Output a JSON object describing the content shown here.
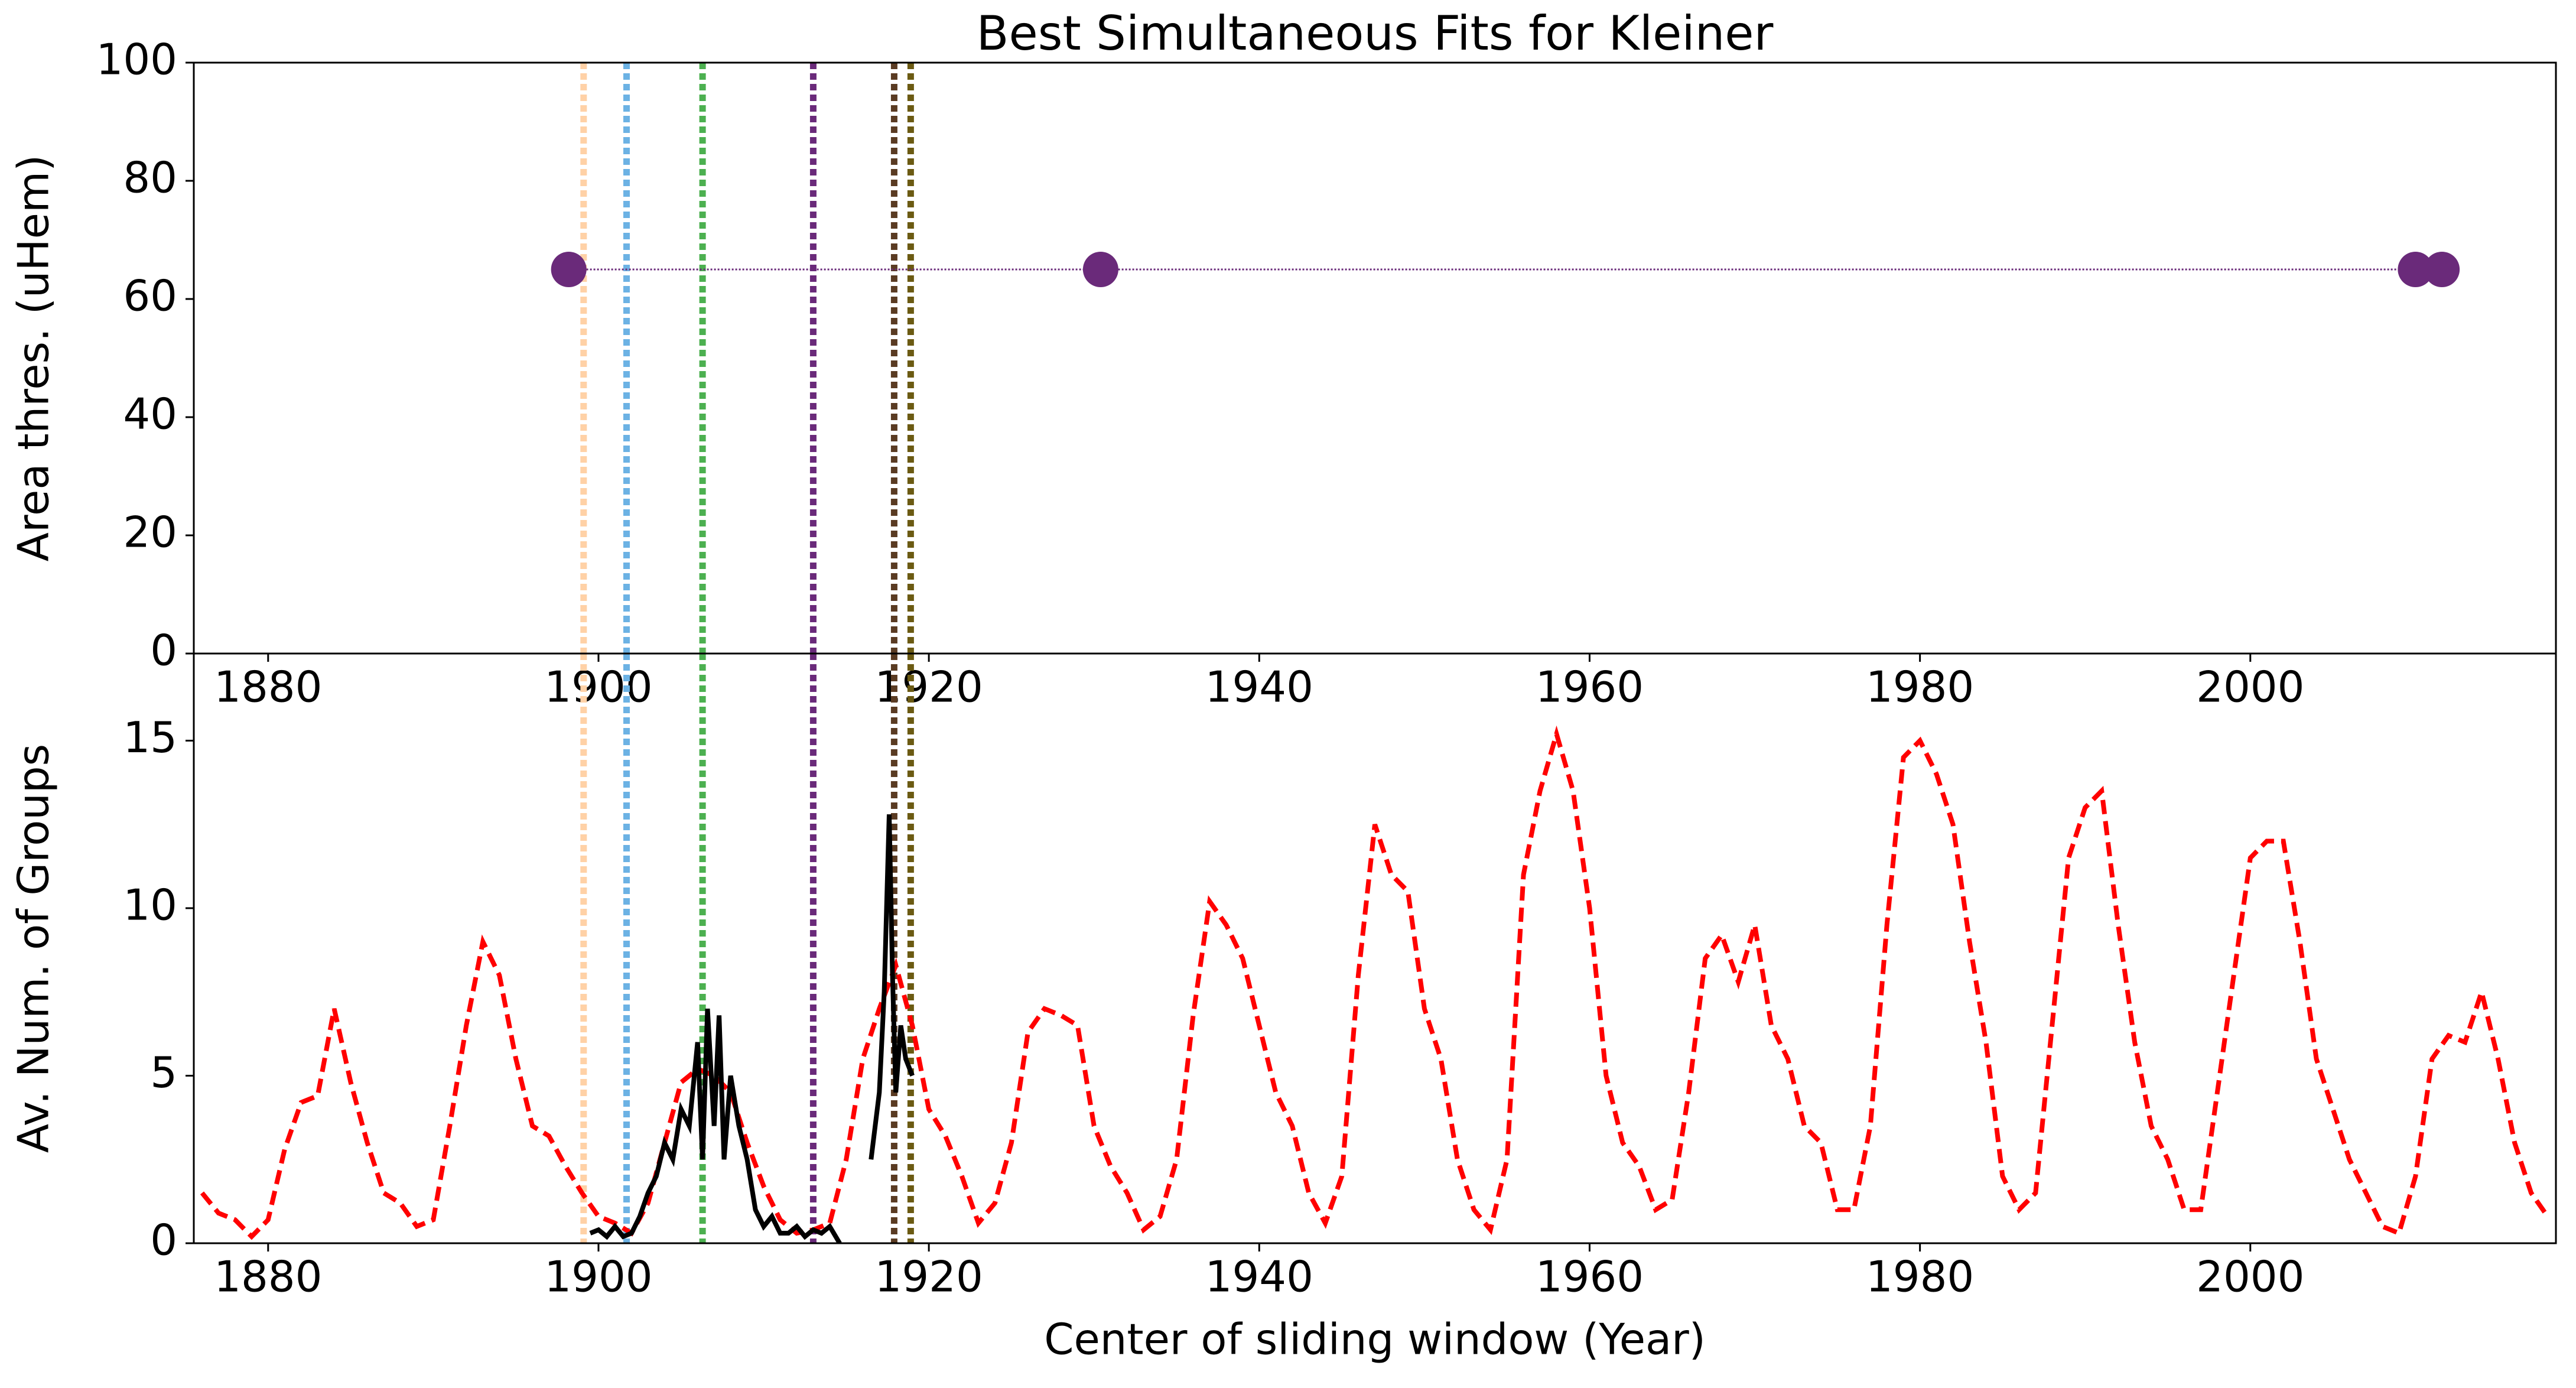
{
  "chart_data": [
    {
      "type": "line",
      "title": "Best Simultaneous Fits for Kleiner",
      "y_label": "Area thres. (uHem)",
      "xlim": [
        1875.5,
        2018.5
      ],
      "xticks": [
        1880,
        1900,
        1920,
        1940,
        1960,
        1980,
        2000
      ],
      "ylim": [
        0,
        100
      ],
      "yticks": [
        0,
        20,
        40,
        60,
        80,
        100
      ],
      "vlines": [
        {
          "x": 1899.1,
          "color": "#ffd1a6"
        },
        {
          "x": 1901.7,
          "color": "#6cb2e4"
        },
        {
          "x": 1906.3,
          "color": "#4cb050"
        },
        {
          "x": 1913.0,
          "color": "#6a2a7a"
        },
        {
          "x": 1917.9,
          "color": "#5a3b22"
        },
        {
          "x": 1918.9,
          "color": "#6b5a12"
        }
      ],
      "series": [
        {
          "color": "#6a2a7a",
          "linestyle": "dotted",
          "markers": true,
          "x": [
            1898.2,
            1930.4,
            2010.0,
            2011.6
          ],
          "values": [
            65,
            65,
            65,
            65
          ]
        }
      ]
    },
    {
      "type": "line",
      "x_label": "Center of sliding window (Year)",
      "y_label": "Av. Num. of Groups",
      "xlim": [
        1875.5,
        2018.5
      ],
      "xticks": [
        1880,
        1900,
        1920,
        1940,
        1960,
        1980,
        2000
      ],
      "ylim": [
        0,
        17.6
      ],
      "yticks": [
        0,
        5,
        10,
        15
      ],
      "vlines": [
        {
          "x": 1899.1,
          "color": "#ffd1a6"
        },
        {
          "x": 1901.7,
          "color": "#6cb2e4"
        },
        {
          "x": 1906.3,
          "color": "#4cb050"
        },
        {
          "x": 1913.0,
          "color": "#6a2a7a"
        },
        {
          "x": 1917.9,
          "color": "#5a3b22"
        },
        {
          "x": 1918.9,
          "color": "#6b5a12"
        }
      ],
      "series": [
        {
          "color": "#ff0000",
          "linestyle": "dashed",
          "markers": false,
          "x": [
            1876,
            1877,
            1878,
            1879,
            1880,
            1881,
            1882,
            1883,
            1884,
            1885,
            1886,
            1887,
            1888,
            1889,
            1890,
            1891,
            1892,
            1893,
            1894,
            1895,
            1896,
            1897,
            1898,
            1899,
            1900,
            1901,
            1902,
            1903,
            1904,
            1905,
            1906,
            1907,
            1908,
            1909,
            1910,
            1911,
            1912,
            1913,
            1914,
            1915,
            1916,
            1917,
            1918,
            1919,
            1920,
            1921,
            1922,
            1923,
            1924,
            1925,
            1926,
            1927,
            1928,
            1929,
            1930,
            1931,
            1932,
            1933,
            1934,
            1935,
            1936,
            1937,
            1938,
            1939,
            1940,
            1941,
            1942,
            1943,
            1944,
            1945,
            1946,
            1947,
            1948,
            1949,
            1950,
            1951,
            1952,
            1953,
            1954,
            1955,
            1956,
            1957,
            1958,
            1959,
            1960,
            1961,
            1962,
            1963,
            1964,
            1965,
            1966,
            1967,
            1968,
            1969,
            1970,
            1971,
            1972,
            1973,
            1974,
            1975,
            1976,
            1977,
            1978,
            1979,
            1980,
            1981,
            1982,
            1983,
            1984,
            1985,
            1986,
            1987,
            1988,
            1989,
            1990,
            1991,
            1992,
            1993,
            1994,
            1995,
            1996,
            1997,
            1998,
            1999,
            2000,
            2001,
            2002,
            2003,
            2004,
            2005,
            2006,
            2007,
            2008,
            2009,
            2010,
            2011,
            2012,
            2013,
            2014,
            2015,
            2016,
            2017,
            2018
          ],
          "values": [
            1.5,
            0.9,
            0.7,
            0.2,
            0.7,
            2.8,
            4.2,
            4.4,
            7.0,
            4.8,
            3.0,
            1.5,
            1.2,
            0.5,
            0.7,
            3.5,
            6.5,
            9.0,
            8.0,
            5.5,
            3.5,
            3.2,
            2.3,
            1.5,
            0.8,
            0.6,
            0.3,
            1.2,
            3.0,
            4.8,
            5.2,
            5.0,
            4.5,
            3.0,
            1.7,
            0.7,
            0.3,
            0.4,
            0.6,
            2.5,
            5.5,
            7.0,
            8.3,
            6.5,
            4.0,
            3.2,
            2.0,
            0.6,
            1.2,
            3.0,
            6.3,
            7.0,
            6.8,
            6.5,
            3.5,
            2.3,
            1.5,
            0.4,
            0.8,
            2.5,
            6.8,
            10.2,
            9.5,
            8.5,
            6.5,
            4.5,
            3.5,
            1.5,
            0.6,
            2.0,
            8.0,
            12.5,
            11.0,
            10.5,
            7.0,
            5.5,
            2.5,
            1.0,
            0.4,
            2.5,
            11.0,
            13.5,
            15.2,
            13.5,
            10.0,
            5.0,
            3.0,
            2.3,
            1.0,
            1.3,
            4.5,
            8.5,
            9.2,
            7.8,
            9.5,
            6.5,
            5.5,
            3.5,
            3.0,
            1.0,
            1.0,
            3.5,
            9.5,
            14.5,
            15.0,
            14.0,
            12.5,
            9.0,
            6.0,
            2.0,
            1.0,
            1.5,
            6.5,
            11.5,
            13.0,
            13.5,
            9.5,
            6.0,
            3.5,
            2.5,
            1.0,
            1.0,
            4.5,
            8.0,
            11.5,
            12.0,
            12.0,
            9.0,
            5.5,
            4.0,
            2.5,
            1.5,
            0.5,
            0.3,
            2.0,
            5.5,
            6.2,
            6.0,
            7.5,
            5.5,
            3.0,
            1.5,
            0.8
          ]
        },
        {
          "color": "#000000",
          "linestyle": "solid",
          "markers": false,
          "x": [
            1899.5,
            1900,
            1900.5,
            1901,
            1901.5,
            1902,
            1902.5,
            1903,
            1903.5,
            1904,
            1904.5,
            1905,
            1905.5,
            1906,
            1906.3,
            1906.6,
            1907,
            1907.3,
            1907.6,
            1908,
            1908.5,
            1909,
            1909.5,
            1910,
            1910.5,
            1911,
            1911.5,
            1912,
            1912.5,
            1913,
            1913.5,
            1914,
            1914.6,
            1915.5,
            1916.5,
            1917,
            1917.3,
            1917.6,
            1917.8,
            1918,
            1918.3,
            1918.6,
            1919
          ],
          "values": [
            0.3,
            0.4,
            0.2,
            0.5,
            0.2,
            0.3,
            0.8,
            1.5,
            2.0,
            3.0,
            2.5,
            4.0,
            3.5,
            6.0,
            2.5,
            7.0,
            3.5,
            6.8,
            2.5,
            5.0,
            3.5,
            2.5,
            1.0,
            0.5,
            0.8,
            0.3,
            0.3,
            0.5,
            0.2,
            0.4,
            0.3,
            0.5,
            0.0,
            null,
            2.5,
            4.5,
            7.5,
            12.8,
            8.0,
            4.5,
            6.5,
            5.5,
            5.0
          ]
        }
      ]
    }
  ]
}
